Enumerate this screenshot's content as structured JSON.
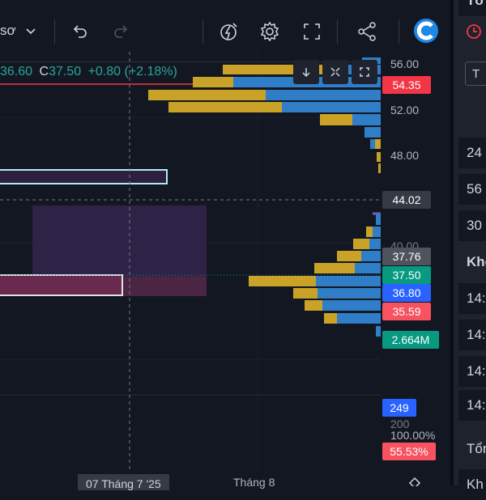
{
  "toolbar": {
    "symbol_suffix": "sơ",
    "icons": [
      "chevron-down-icon",
      "undo-icon",
      "redo-icon",
      "alert-icon",
      "gear-icon",
      "fullscreen-icon",
      "share-icon",
      "logo-icon"
    ]
  },
  "legend": {
    "low": "36.60",
    "close_label": "C",
    "close": "37.50",
    "change": "+0.80 (+2.18%)"
  },
  "colors": {
    "background": "#131722",
    "red_tag": "#f23645",
    "green_tag": "#089981",
    "blue_tag": "#2962ff",
    "pink_tag": "#f7525f",
    "gray_tag": "#50535e",
    "vp_up": "#c9a227",
    "vp_down": "#2f7ec7"
  },
  "price_axis": {
    "labels": [
      "56.00",
      "52.00",
      "48.00",
      "40.00",
      "200",
      "100.00%"
    ],
    "tags": {
      "high_line": "54.35",
      "crosshair": "44.02",
      "level_1": "37.76",
      "close": "37.50",
      "level_2": "36.80",
      "level_3": "35.59",
      "volume": "2.664M",
      "indicator_value": "249",
      "percent": "55.53%"
    }
  },
  "time_axis": {
    "crosshair_date": "07 Tháng 7 '25",
    "month_label": "Tháng 8"
  },
  "right_panel": {
    "rows": [
      "Tổ",
      "T",
      "24",
      "56",
      "30",
      "Khớ",
      "14:",
      "14:",
      "14:",
      "14:",
      "Tổng",
      "Kh"
    ]
  }
}
